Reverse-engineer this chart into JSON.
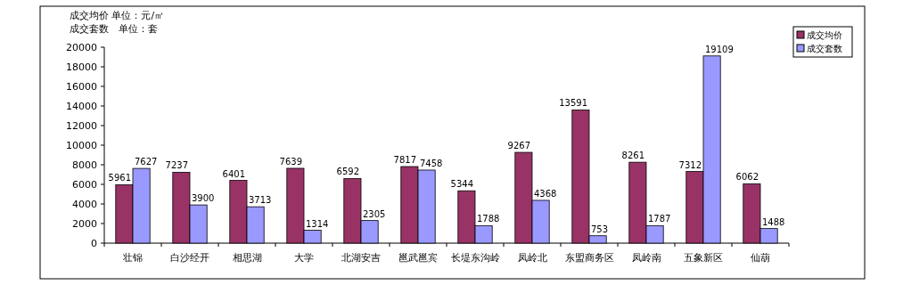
{
  "chart_data": {
    "type": "bar",
    "annotations": [
      "成交均价 单位：元/㎡",
      "成交套数　单位：套"
    ],
    "categories": [
      "壮锦",
      "白沙经开",
      "相思湖",
      "大学",
      "北湖安吉",
      "邕武邕宾",
      "长堤东沟岭",
      "凤岭北",
      "东盟商务区",
      "凤岭南",
      "五象新区",
      "仙葫"
    ],
    "series": [
      {
        "name": "成交均价",
        "color": "#993366",
        "values": [
          5961,
          7237,
          6401,
          7639,
          6592,
          7817,
          5344,
          9267,
          13591,
          8261,
          7312,
          6062
        ]
      },
      {
        "name": "成交套数",
        "color": "#9999ff",
        "values": [
          7627,
          3900,
          3713,
          1314,
          2305,
          7458,
          1788,
          4368,
          753,
          1787,
          19109,
          1488
        ]
      }
    ],
    "ylim": [
      0,
      20000
    ],
    "yticks": [
      0,
      2000,
      4000,
      6000,
      8000,
      10000,
      12000,
      14000,
      16000,
      18000,
      20000
    ],
    "data_labels": true,
    "legend": "top right",
    "grid": false
  }
}
